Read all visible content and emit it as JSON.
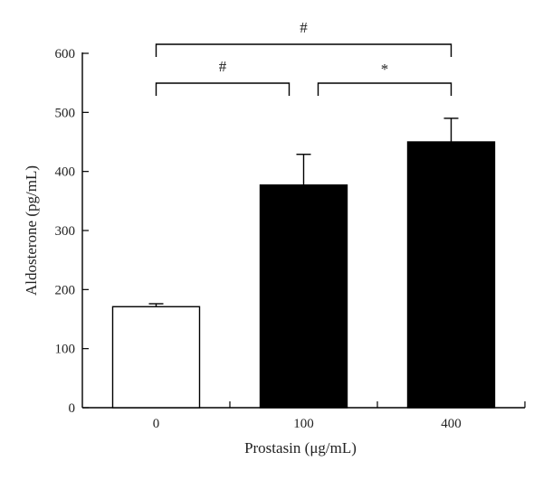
{
  "chart_data": {
    "type": "bar",
    "categories": [
      "0",
      "100",
      "400"
    ],
    "values": [
      171,
      377,
      450
    ],
    "errors": [
      5,
      52,
      40
    ],
    "bar_fills": [
      "#ffffff",
      "#000000",
      "#000000"
    ],
    "xlabel": "Prostasin (μg/mL)",
    "ylabel": "Aldosterone (pg/mL)",
    "ylim": [
      0,
      600
    ],
    "yticks": [
      0,
      100,
      200,
      300,
      400,
      500,
      600
    ],
    "grid": false,
    "significance": [
      {
        "from": 0,
        "to": 2,
        "label": "#"
      },
      {
        "from": 0,
        "to": 1,
        "label": "#"
      },
      {
        "from": 1,
        "to": 2,
        "label": "*"
      }
    ]
  }
}
